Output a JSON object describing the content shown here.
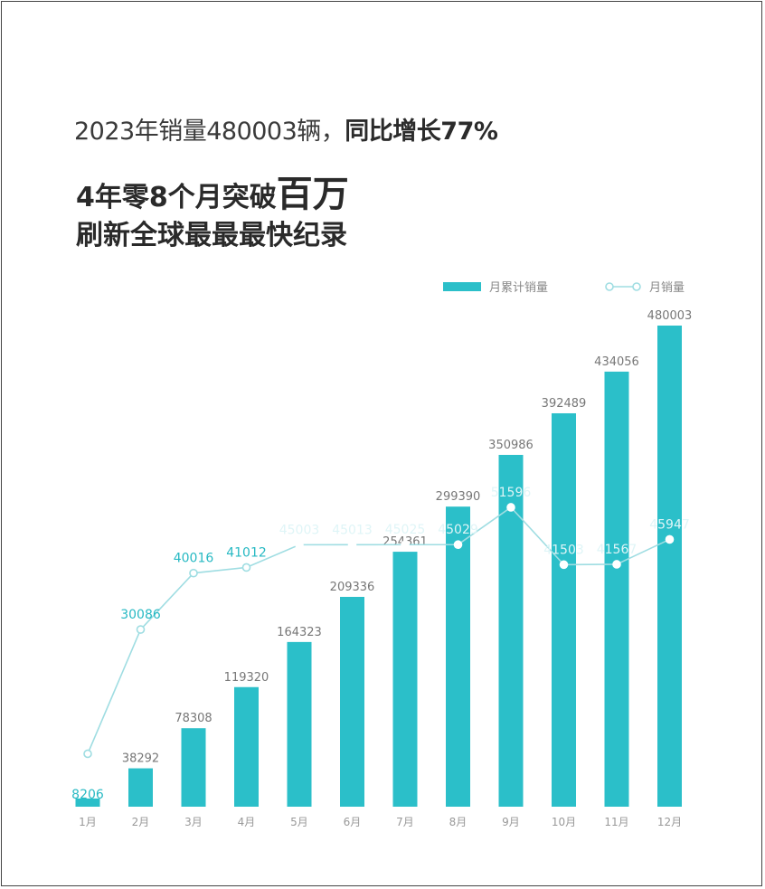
{
  "header": {
    "line1_a": "2023年销量480003辆，",
    "line1_b": "同比增长77%",
    "line2_a": "4年零8个月突破",
    "line2_b": "百万",
    "line3": "刷新全球最最最快纪录"
  },
  "chart_data": {
    "type": "bar",
    "categories": [
      "1月",
      "2月",
      "3月",
      "4月",
      "5月",
      "6月",
      "7月",
      "8月",
      "9月",
      "10月",
      "11月",
      "12月"
    ],
    "series": [
      {
        "name": "月累计销量",
        "type": "bar",
        "values": [
          8206,
          38292,
          78308,
          119320,
          164323,
          209336,
          254361,
          299390,
          350986,
          392489,
          434056,
          480003
        ],
        "color": "#2bbfc9"
      },
      {
        "name": "月销量",
        "type": "line",
        "values": [
          8206,
          30086,
          40016,
          41012,
          45003,
          45013,
          45025,
          45029,
          51596,
          41503,
          41567,
          45947
        ],
        "labels": [
          "8206",
          "30086",
          "40016",
          "41012",
          "45003",
          "45013",
          "45025",
          "45029",
          "51596",
          "41503",
          "41567",
          "45947"
        ],
        "color": "#9fdde2"
      }
    ],
    "legend_position": "top-right",
    "grid": false
  }
}
